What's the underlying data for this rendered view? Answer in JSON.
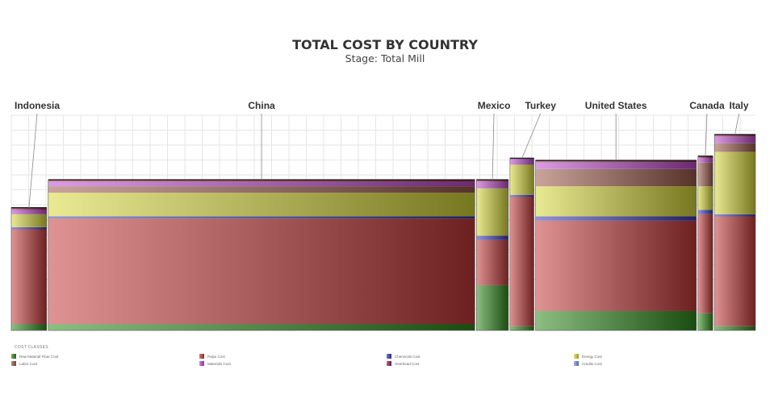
{
  "chart_data": {
    "type": "bar",
    "subtype": "marimekko-stacked",
    "title": "TOTAL COST BY COUNTRY",
    "subtitle": "Stage: Total Mill",
    "xlabel": "",
    "ylabel": "",
    "ylim": [
      0,
      100
    ],
    "grid": true,
    "legend_title": "COST CLASSES",
    "legend_position": "bottom",
    "categories": [
      "Indonesia",
      "China",
      "Mexico",
      "Turkey",
      "United States",
      "Canada",
      "Italy"
    ],
    "widths": [
      3.1,
      37.4,
      2.8,
      2.1,
      14.1,
      1.3,
      3.6
    ],
    "series": [
      {
        "name": "Raw Material Fiber Cost",
        "color": "#2f8a1d",
        "values": [
          3,
          3,
          21,
          2,
          9,
          8,
          2
        ]
      },
      {
        "name": "Pulps Cost",
        "color": "#c43a3a",
        "values": [
          44,
          49,
          21,
          60,
          42,
          46,
          51
        ]
      },
      {
        "name": "Chemicals Cost",
        "color": "#3b3bbd",
        "values": [
          1,
          1,
          2,
          1,
          2,
          2,
          1
        ]
      },
      {
        "name": "Energy Cost",
        "color": "#d9d93a",
        "values": [
          6,
          11,
          22,
          14,
          14,
          11,
          29
        ]
      },
      {
        "name": "Labor Cost",
        "color": "#9c5a4a",
        "values": [
          0,
          3,
          0,
          0,
          8,
          11,
          4
        ]
      },
      {
        "name": "Materials Cost",
        "color": "#c04bd0",
        "values": [
          2,
          2,
          3,
          3,
          3,
          2,
          3
        ]
      },
      {
        "name": "Overhead Cost",
        "color": "#a0215a",
        "values": [
          1,
          1,
          1,
          0,
          1,
          1,
          1
        ]
      },
      {
        "name": "Credits Cost",
        "color": "#7a9ac8",
        "values": [
          0,
          0,
          0,
          0,
          0,
          0,
          0
        ]
      }
    ]
  }
}
